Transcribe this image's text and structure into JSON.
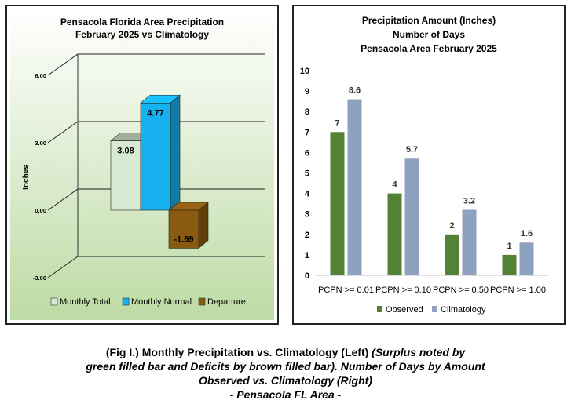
{
  "chart_data": [
    {
      "type": "bar",
      "title": [
        "Pensacola Florida Area Precipitation",
        "February 2025 vs Climatology"
      ],
      "ylabel": "Inches",
      "xlabel": "",
      "ylim": [
        -3.0,
        6.0
      ],
      "yticks": [
        "6.00",
        "3.00",
        "0.00",
        "-3.00"
      ],
      "series": [
        {
          "name": "Monthly Total",
          "value": 3.08,
          "label": "3.08",
          "color": "#d9ead3"
        },
        {
          "name": "Monthly Normal",
          "value": 4.77,
          "label": "4.77",
          "color": "#17b1ef"
        },
        {
          "name": "Departure",
          "value": -1.69,
          "label": "-1.69",
          "color": "#8a5a10"
        }
      ],
      "legend_position": "bottom",
      "grid": true
    },
    {
      "type": "bar",
      "title": [
        "Precipitation Amount (Inches)",
        "Number of Days",
        "Pensacola Area February 2025"
      ],
      "xlabel": "",
      "ylabel": "",
      "ylim": [
        0,
        10
      ],
      "yticks": [
        "0",
        "1",
        "2",
        "3",
        "4",
        "5",
        "6",
        "7",
        "8",
        "9",
        "10"
      ],
      "categories": [
        "PCPN >= 0.01",
        "PCPN >= 0.10",
        "PCPN >= 0.50",
        "PCPN >= 1.00"
      ],
      "series": [
        {
          "name": "Observed",
          "values": [
            7,
            4,
            2,
            1
          ],
          "labels": [
            "7",
            "4",
            "2",
            "1"
          ],
          "color": "#538135"
        },
        {
          "name": "Climatology",
          "values": [
            8.6,
            5.7,
            3.2,
            1.6
          ],
          "labels": [
            "8.6",
            "5.7",
            "3.2",
            "1.6"
          ],
          "color": "#8eA2c0"
        }
      ],
      "legend_position": "bottom",
      "grid": false
    }
  ],
  "caption": {
    "line1_bold": "(Fig I.) Monthly Precipitation vs. Climatology (Left) ",
    "line1_italic": "(Surplus noted by",
    "line2": "green filled bar and Deficits by brown filled bar). Number of Days by Amount",
    "line3": "Observed vs. Climatology (Right)",
    "line4": "- Pensacola FL Area -"
  }
}
